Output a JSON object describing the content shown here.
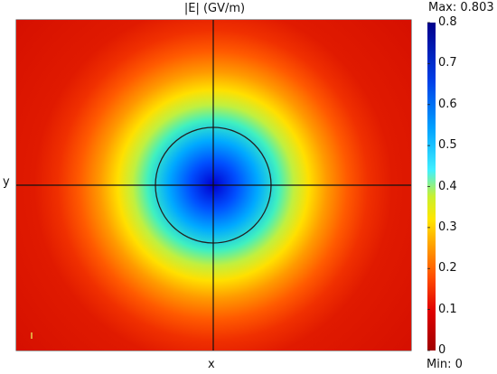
{
  "chart_data": {
    "type": "heatmap",
    "title": "|E| (GV/m)",
    "xlabel": "x",
    "ylabel": "y",
    "field": "radial gaussian field magnitude centered at origin",
    "value_range": [
      0,
      0.803
    ],
    "max_label": "Max: 0.803",
    "min_label": "Min: 0",
    "colorbar": {
      "ticks": [
        "0",
        "0.1",
        "0.2",
        "0.3",
        "0.4",
        "0.5",
        "0.6",
        "0.7",
        "0.8"
      ],
      "tick_values": [
        0,
        0.1,
        0.2,
        0.3,
        0.4,
        0.5,
        0.6,
        0.7,
        0.8
      ],
      "colormap": [
        "#8b0000",
        "#d40000",
        "#ff2200",
        "#ff7a00",
        "#ffd200",
        "#c8f000",
        "#3ef0ff",
        "#0095ff",
        "#0030e0",
        "#00008b"
      ]
    },
    "boundary_circle": true,
    "crosshair_axes": true
  }
}
